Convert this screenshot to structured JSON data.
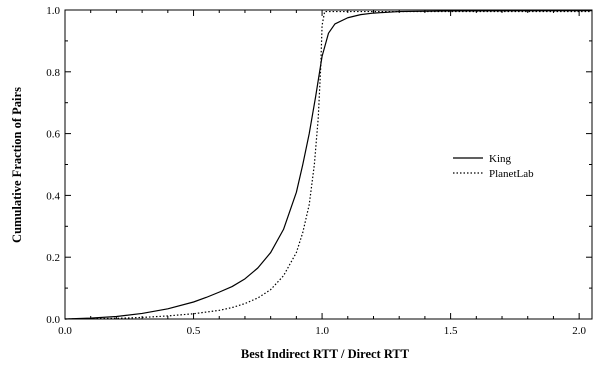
{
  "chart_data": {
    "type": "line",
    "title": "",
    "xlabel": "Best Indirect RTT / Direct RTT",
    "ylabel": "Cumulative Fraction of Pairs",
    "xlim": [
      0,
      2.05
    ],
    "ylim": [
      0,
      1.0
    ],
    "x_ticks": [
      "0.0",
      "0.5",
      "1.0",
      "1.5",
      "2.0"
    ],
    "y_ticks": [
      "0.0",
      "0.2",
      "0.4",
      "0.6",
      "0.8",
      "1.0"
    ],
    "grid": false,
    "legend_position": "right",
    "series": [
      {
        "name": "King",
        "style": "solid",
        "x": [
          0.0,
          0.1,
          0.2,
          0.3,
          0.4,
          0.5,
          0.55,
          0.6,
          0.65,
          0.7,
          0.75,
          0.8,
          0.85,
          0.9,
          0.925,
          0.95,
          0.975,
          1.0,
          1.025,
          1.05,
          1.1,
          1.15,
          1.2,
          1.3,
          1.5,
          2.05
        ],
        "y": [
          0.0,
          0.003,
          0.008,
          0.018,
          0.033,
          0.055,
          0.07,
          0.087,
          0.105,
          0.13,
          0.165,
          0.215,
          0.29,
          0.41,
          0.5,
          0.6,
          0.72,
          0.85,
          0.925,
          0.955,
          0.975,
          0.985,
          0.99,
          0.995,
          0.997,
          0.998
        ]
      },
      {
        "name": "PlanetLab",
        "style": "dotted",
        "x": [
          0.0,
          0.2,
          0.3,
          0.4,
          0.5,
          0.6,
          0.65,
          0.7,
          0.75,
          0.8,
          0.85,
          0.9,
          0.925,
          0.95,
          0.97,
          0.985,
          0.995,
          1.0,
          1.01,
          1.05,
          1.2,
          1.5,
          2.05
        ],
        "y": [
          0.0,
          0.002,
          0.005,
          0.01,
          0.017,
          0.028,
          0.037,
          0.05,
          0.068,
          0.095,
          0.14,
          0.215,
          0.28,
          0.37,
          0.5,
          0.65,
          0.82,
          0.95,
          0.995,
          0.995,
          0.995,
          0.995,
          0.995
        ]
      }
    ]
  }
}
